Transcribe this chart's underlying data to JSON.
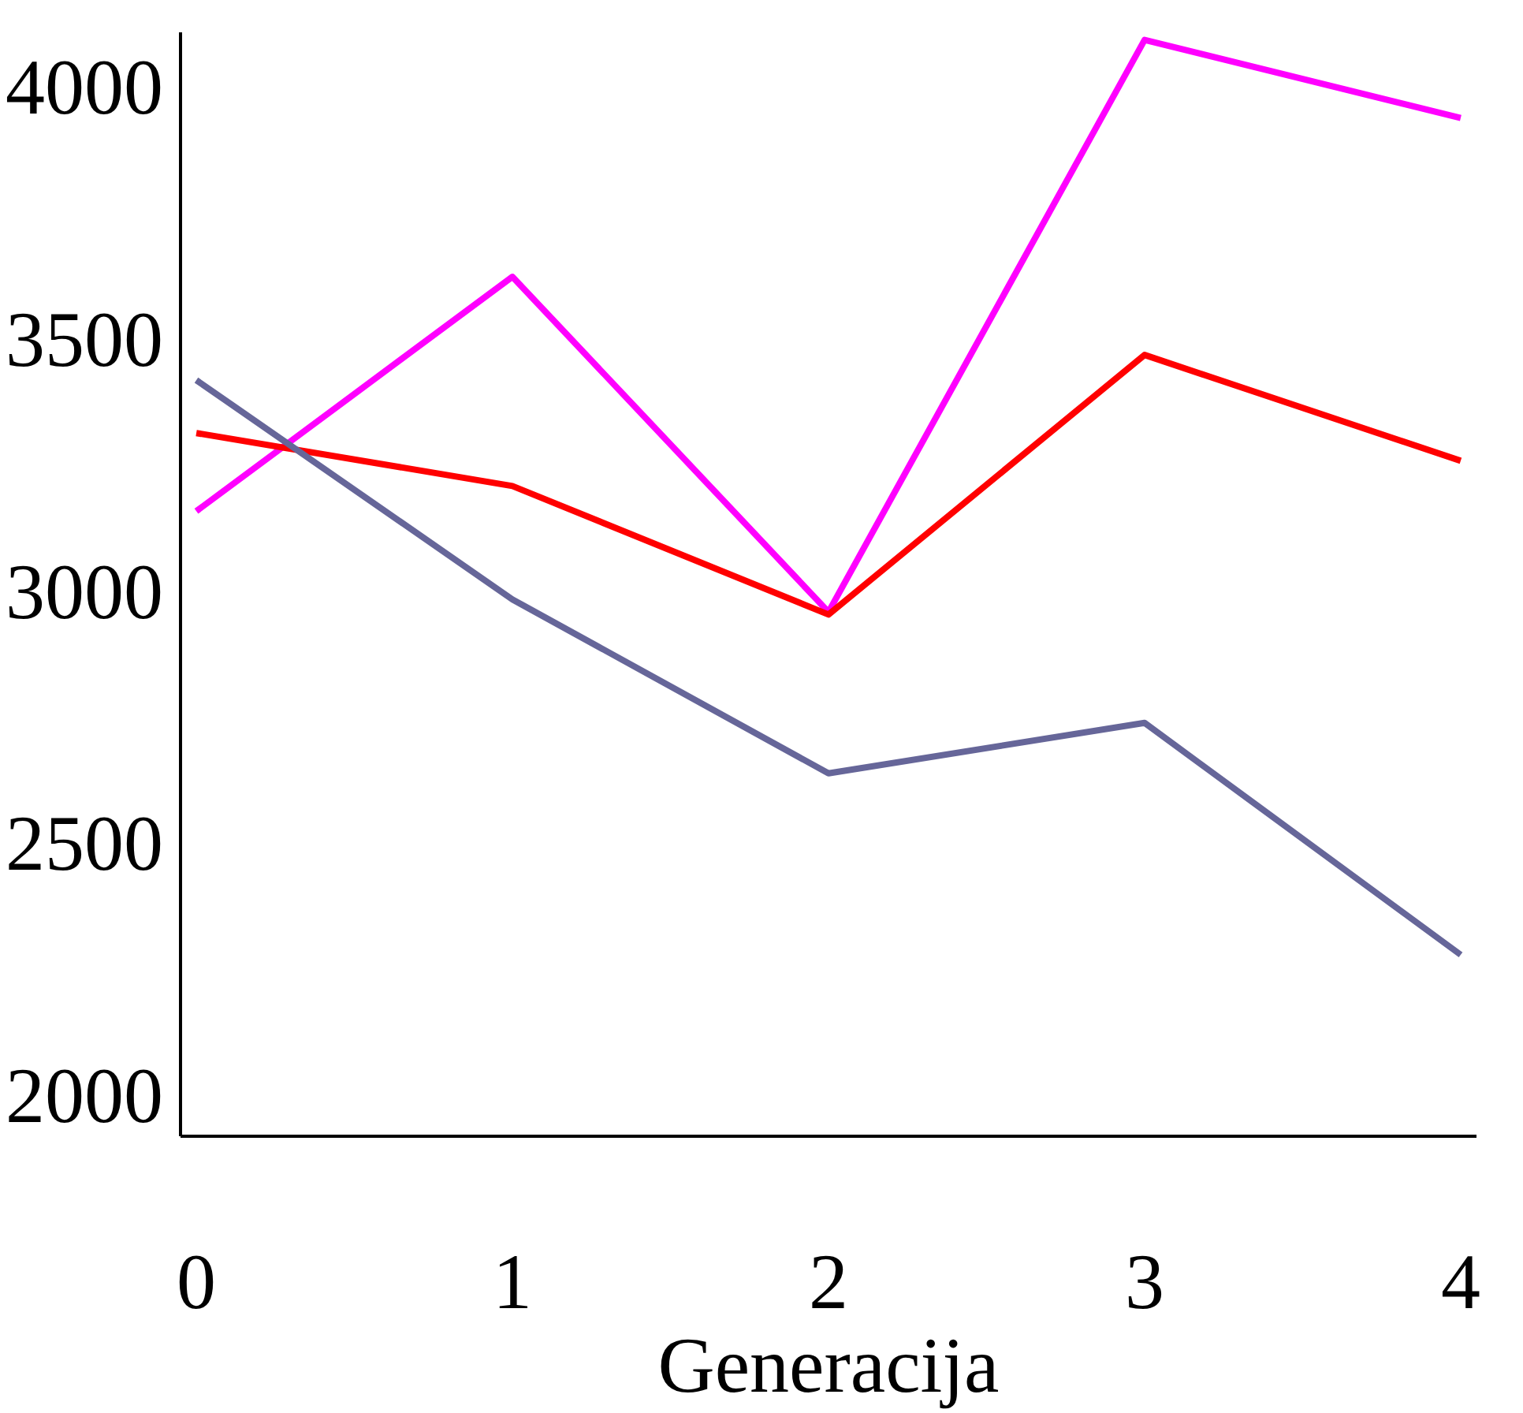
{
  "chart_data": {
    "type": "line",
    "xlabel": "Generacija",
    "x": [
      0,
      1,
      2,
      3,
      4
    ],
    "series": [
      {
        "color": "#ff00ff",
        "values": [
          3160,
          3625,
          2960,
          4095,
          3940
        ]
      },
      {
        "color": "#ff0000",
        "values": [
          3315,
          3210,
          2955,
          3470,
          3260
        ]
      },
      {
        "color": "#666699",
        "values": [
          3420,
          2985,
          2640,
          2740,
          2280
        ]
      }
    ],
    "xlim": [
      -0.05,
      4.05
    ],
    "ylim": [
      1920,
      4110
    ],
    "xticks": [
      0,
      1,
      2,
      3,
      4
    ],
    "yticks": [
      2000,
      2500,
      3000,
      3500,
      4000
    ],
    "grid": false,
    "marker": "none",
    "line_style": "solid"
  }
}
